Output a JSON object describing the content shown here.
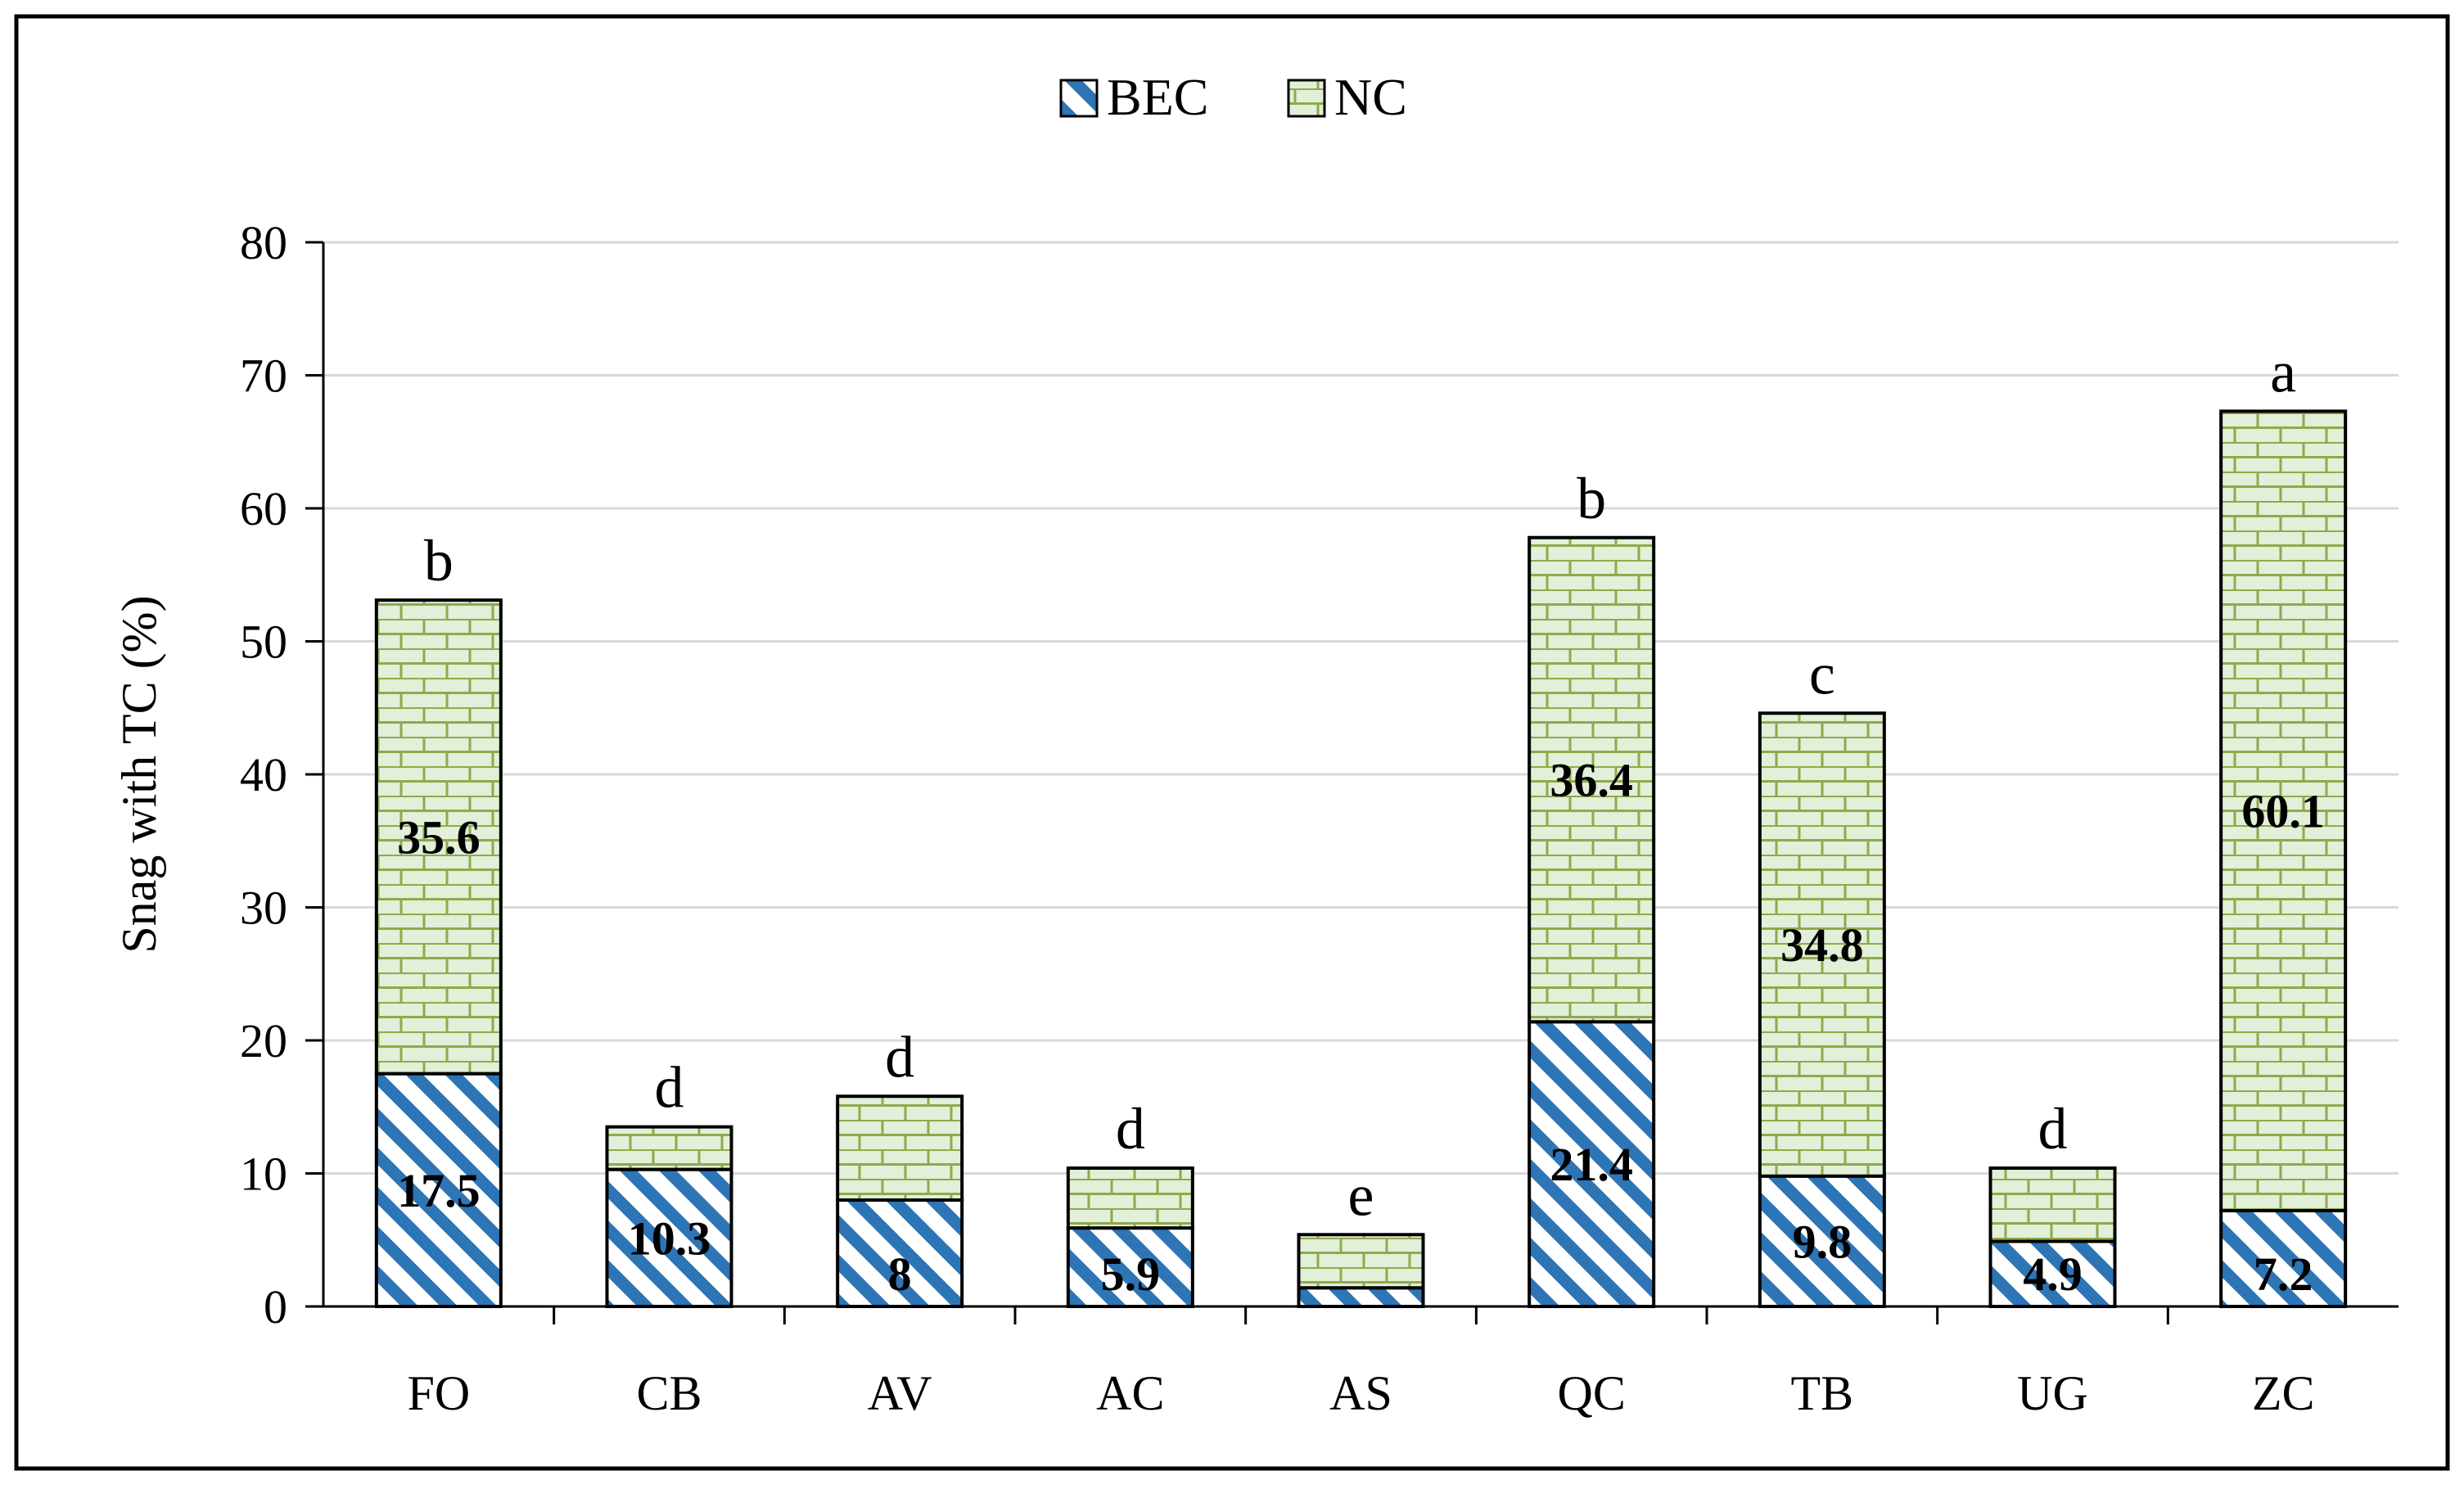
{
  "chart_data": {
    "type": "bar",
    "stacked": true,
    "title": "",
    "xlabel": "",
    "ylabel": "Snag with TC (%)",
    "ylim": [
      0,
      80
    ],
    "yticks": [
      0,
      10,
      20,
      30,
      40,
      50,
      60,
      70,
      80
    ],
    "grid": true,
    "legend_position": "top-center",
    "categories": [
      "FO",
      "CB",
      "AV",
      "AC",
      "AS",
      "QC",
      "TB",
      "UG",
      "ZC"
    ],
    "series": [
      {
        "name": "BEC",
        "pattern": "diagonal-hatch",
        "color": "#2e75b6",
        "values": [
          17.5,
          10.3,
          8,
          5.9,
          1.4,
          21.4,
          9.8,
          4.9,
          7.2
        ],
        "labels": [
          "17.5",
          "10.3",
          "8",
          "5.9",
          "",
          "21.4",
          "9.8",
          "4.9",
          "7.2"
        ]
      },
      {
        "name": "NC",
        "pattern": "brick",
        "color": "#e2efd9",
        "pattern_line_color": "#8faa4a",
        "values": [
          35.6,
          3.2,
          7.8,
          4.5,
          4.0,
          36.4,
          34.8,
          5.5,
          60.1
        ],
        "labels": [
          "35.6",
          "",
          "",
          "",
          "",
          "36.4",
          "34.8",
          "",
          "60.1"
        ]
      }
    ],
    "significance_letters": [
      "b",
      "d",
      "d",
      "d",
      "e",
      "b",
      "c",
      "d",
      "a"
    ],
    "colors": {
      "frame": "#000000",
      "gridline": "#d9d9d9",
      "axis": "#000000",
      "text": "#000000"
    }
  }
}
